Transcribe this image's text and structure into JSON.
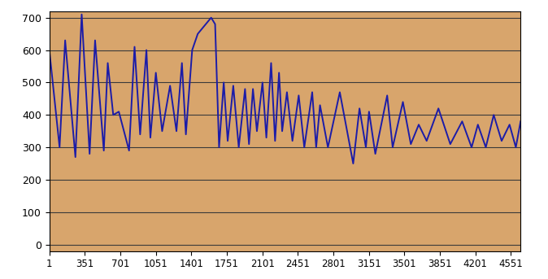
{
  "chart_data": {
    "type": "line",
    "color": "#1c1ca8",
    "grid": true,
    "x": [
      1,
      102,
      157,
      258,
      320,
      398,
      452,
      538,
      577,
      631,
      686,
      787,
      841,
      896,
      958,
      997,
      1051,
      1113,
      1191,
      1254,
      1308,
      1347,
      1409,
      1464,
      1596,
      1635,
      1674,
      1720,
      1759,
      1814,
      1868,
      1930,
      1969,
      2008,
      2047,
      2102,
      2140,
      2187,
      2226,
      2265,
      2296,
      2343,
      2397,
      2459,
      2514,
      2592,
      2631,
      2669,
      2747,
      2864,
      2996,
      3058,
      3121,
      3152,
      3214,
      3331,
      3385,
      3486,
      3564,
      3642,
      3720,
      3836,
      3953,
      4070,
      4163,
      4225,
      4303,
      4381,
      4459,
      4537,
      4599,
      4646
    ],
    "values": [
      600,
      300,
      630,
      270,
      710,
      280,
      630,
      290,
      560,
      400,
      410,
      290,
      610,
      340,
      600,
      330,
      530,
      350,
      490,
      350,
      560,
      340,
      600,
      650,
      700,
      680,
      300,
      500,
      320,
      490,
      300,
      480,
      310,
      480,
      350,
      500,
      330,
      560,
      320,
      530,
      350,
      470,
      320,
      460,
      300,
      470,
      300,
      430,
      300,
      470,
      250,
      420,
      300,
      410,
      280,
      460,
      300,
      440,
      310,
      370,
      320,
      420,
      310,
      380,
      300,
      370,
      300,
      400,
      320,
      370,
      300,
      380
    ],
    "xlim": [
      1,
      4646
    ],
    "ylim": [
      -20,
      720
    ],
    "xticks": [
      1,
      351,
      701,
      1051,
      1401,
      1751,
      2101,
      2451,
      2801,
      3151,
      3501,
      3851,
      4201,
      4551
    ],
    "yticks": [
      0,
      100,
      200,
      300,
      400,
      500,
      600,
      700
    ]
  }
}
